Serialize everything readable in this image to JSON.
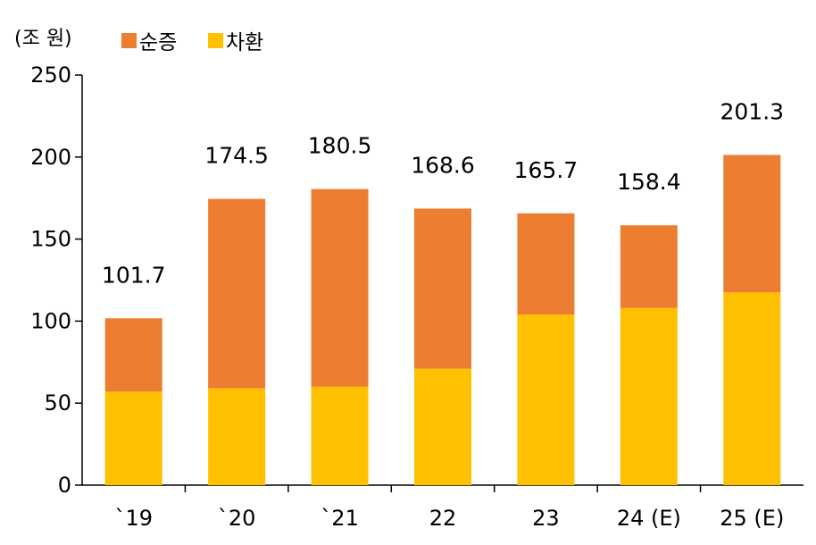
{
  "chart_data": {
    "type": "bar",
    "stacked": true,
    "unit_label": "(조 원)",
    "categories": [
      "`19",
      "`20",
      "`21",
      "22",
      "23",
      "24 (E)",
      "25 (E)"
    ],
    "series": [
      {
        "name": "순증",
        "color": "#ED7D31",
        "values": [
          44.7,
          115.5,
          120.5,
          97.6,
          61.7,
          50.4,
          83.8
        ]
      },
      {
        "name": "차환",
        "color": "#FFC000",
        "values": [
          57.0,
          59.0,
          60.0,
          71.0,
          104.0,
          108.0,
          117.5
        ]
      }
    ],
    "totals": [
      "101.7",
      "174.5",
      "180.5",
      "168.6",
      "165.7",
      "158.4",
      "201.3"
    ],
    "ylim": [
      0,
      250
    ],
    "yticks": [
      0,
      50,
      100,
      150,
      200,
      250
    ],
    "grid": false,
    "legend_position": "top-left"
  }
}
